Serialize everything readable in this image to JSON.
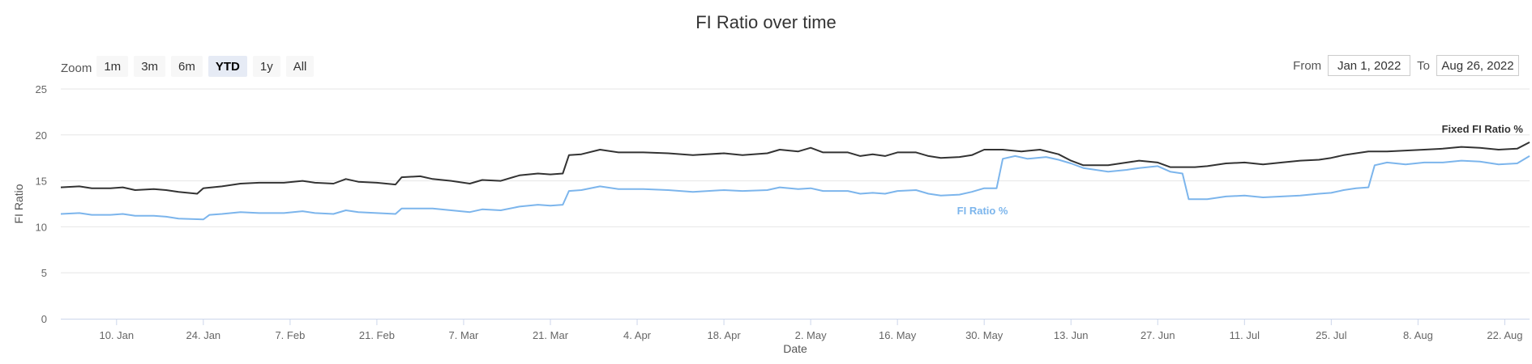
{
  "chart_data": {
    "type": "line",
    "title": "FI Ratio over time",
    "xlabel": "Date",
    "ylabel": "FI Ratio",
    "ylim": [
      0,
      25
    ],
    "yticks": [
      "0",
      "5",
      "10",
      "15",
      "20",
      "25"
    ],
    "xlim": [
      "2022-01-01",
      "2022-08-26"
    ],
    "xticks": [
      {
        "date": "2022-01-10",
        "label": "10. Jan"
      },
      {
        "date": "2022-01-24",
        "label": "24. Jan"
      },
      {
        "date": "2022-02-07",
        "label": "7. Feb"
      },
      {
        "date": "2022-02-21",
        "label": "21. Feb"
      },
      {
        "date": "2022-03-07",
        "label": "7. Mar"
      },
      {
        "date": "2022-03-21",
        "label": "21. Mar"
      },
      {
        "date": "2022-04-04",
        "label": "4. Apr"
      },
      {
        "date": "2022-04-18",
        "label": "18. Apr"
      },
      {
        "date": "2022-05-02",
        "label": "2. May"
      },
      {
        "date": "2022-05-16",
        "label": "16. May"
      },
      {
        "date": "2022-05-30",
        "label": "30. May"
      },
      {
        "date": "2022-06-13",
        "label": "13. Jun"
      },
      {
        "date": "2022-06-27",
        "label": "27. Jun"
      },
      {
        "date": "2022-07-11",
        "label": "11. Jul"
      },
      {
        "date": "2022-07-25",
        "label": "25. Jul"
      },
      {
        "date": "2022-08-08",
        "label": "8. Aug"
      },
      {
        "date": "2022-08-22",
        "label": "22. Aug"
      }
    ],
    "grid": true,
    "legend": "none",
    "series": [
      {
        "name": "Fixed FI Ratio %",
        "color": "#333333",
        "points": [
          [
            "2022-01-01",
            14.3
          ],
          [
            "2022-01-04",
            14.4
          ],
          [
            "2022-01-06",
            14.2
          ],
          [
            "2022-01-09",
            14.2
          ],
          [
            "2022-01-11",
            14.3
          ],
          [
            "2022-01-13",
            14.0
          ],
          [
            "2022-01-16",
            14.1
          ],
          [
            "2022-01-18",
            14.0
          ],
          [
            "2022-01-20",
            13.8
          ],
          [
            "2022-01-23",
            13.6
          ],
          [
            "2022-01-24",
            14.2
          ],
          [
            "2022-01-27",
            14.4
          ],
          [
            "2022-01-30",
            14.7
          ],
          [
            "2022-02-02",
            14.8
          ],
          [
            "2022-02-06",
            14.8
          ],
          [
            "2022-02-09",
            15.0
          ],
          [
            "2022-02-11",
            14.8
          ],
          [
            "2022-02-14",
            14.7
          ],
          [
            "2022-02-16",
            15.2
          ],
          [
            "2022-02-18",
            14.9
          ],
          [
            "2022-02-21",
            14.8
          ],
          [
            "2022-02-24",
            14.6
          ],
          [
            "2022-02-25",
            15.4
          ],
          [
            "2022-02-28",
            15.5
          ],
          [
            "2022-03-02",
            15.2
          ],
          [
            "2022-03-05",
            15.0
          ],
          [
            "2022-03-08",
            14.7
          ],
          [
            "2022-03-10",
            15.1
          ],
          [
            "2022-03-13",
            15.0
          ],
          [
            "2022-03-16",
            15.6
          ],
          [
            "2022-03-19",
            15.8
          ],
          [
            "2022-03-21",
            15.7
          ],
          [
            "2022-03-23",
            15.8
          ],
          [
            "2022-03-24",
            17.8
          ],
          [
            "2022-03-26",
            17.9
          ],
          [
            "2022-03-29",
            18.4
          ],
          [
            "2022-04-01",
            18.1
          ],
          [
            "2022-04-05",
            18.1
          ],
          [
            "2022-04-09",
            18.0
          ],
          [
            "2022-04-13",
            17.8
          ],
          [
            "2022-04-18",
            18.0
          ],
          [
            "2022-04-21",
            17.8
          ],
          [
            "2022-04-25",
            18.0
          ],
          [
            "2022-04-27",
            18.4
          ],
          [
            "2022-04-30",
            18.2
          ],
          [
            "2022-05-02",
            18.6
          ],
          [
            "2022-05-04",
            18.1
          ],
          [
            "2022-05-08",
            18.1
          ],
          [
            "2022-05-10",
            17.7
          ],
          [
            "2022-05-12",
            17.9
          ],
          [
            "2022-05-14",
            17.7
          ],
          [
            "2022-05-16",
            18.1
          ],
          [
            "2022-05-19",
            18.1
          ],
          [
            "2022-05-21",
            17.7
          ],
          [
            "2022-05-23",
            17.5
          ],
          [
            "2022-05-26",
            17.6
          ],
          [
            "2022-05-28",
            17.8
          ],
          [
            "2022-05-30",
            18.4
          ],
          [
            "2022-06-02",
            18.4
          ],
          [
            "2022-06-05",
            18.2
          ],
          [
            "2022-06-08",
            18.4
          ],
          [
            "2022-06-11",
            17.9
          ],
          [
            "2022-06-13",
            17.2
          ],
          [
            "2022-06-15",
            16.7
          ],
          [
            "2022-06-19",
            16.7
          ],
          [
            "2022-06-22",
            17.0
          ],
          [
            "2022-06-24",
            17.2
          ],
          [
            "2022-06-27",
            17.0
          ],
          [
            "2022-06-29",
            16.5
          ],
          [
            "2022-07-03",
            16.5
          ],
          [
            "2022-07-05",
            16.6
          ],
          [
            "2022-07-08",
            16.9
          ],
          [
            "2022-07-11",
            17.0
          ],
          [
            "2022-07-14",
            16.8
          ],
          [
            "2022-07-17",
            17.0
          ],
          [
            "2022-07-20",
            17.2
          ],
          [
            "2022-07-23",
            17.3
          ],
          [
            "2022-07-25",
            17.5
          ],
          [
            "2022-07-27",
            17.8
          ],
          [
            "2022-07-31",
            18.2
          ],
          [
            "2022-08-03",
            18.2
          ],
          [
            "2022-08-06",
            18.3
          ],
          [
            "2022-08-09",
            18.4
          ],
          [
            "2022-08-12",
            18.5
          ],
          [
            "2022-08-15",
            18.7
          ],
          [
            "2022-08-18",
            18.6
          ],
          [
            "2022-08-21",
            18.4
          ],
          [
            "2022-08-24",
            18.5
          ],
          [
            "2022-08-26",
            19.2
          ]
        ]
      },
      {
        "name": "FI Ratio %",
        "color": "#7cb5ec",
        "points": [
          [
            "2022-01-01",
            11.4
          ],
          [
            "2022-01-04",
            11.5
          ],
          [
            "2022-01-06",
            11.3
          ],
          [
            "2022-01-09",
            11.3
          ],
          [
            "2022-01-11",
            11.4
          ],
          [
            "2022-01-13",
            11.2
          ],
          [
            "2022-01-16",
            11.2
          ],
          [
            "2022-01-18",
            11.1
          ],
          [
            "2022-01-20",
            10.9
          ],
          [
            "2022-01-24",
            10.8
          ],
          [
            "2022-01-25",
            11.3
          ],
          [
            "2022-01-27",
            11.4
          ],
          [
            "2022-01-30",
            11.6
          ],
          [
            "2022-02-02",
            11.5
          ],
          [
            "2022-02-06",
            11.5
          ],
          [
            "2022-02-09",
            11.7
          ],
          [
            "2022-02-11",
            11.5
          ],
          [
            "2022-02-14",
            11.4
          ],
          [
            "2022-02-16",
            11.8
          ],
          [
            "2022-02-18",
            11.6
          ],
          [
            "2022-02-21",
            11.5
          ],
          [
            "2022-02-24",
            11.4
          ],
          [
            "2022-02-25",
            12.0
          ],
          [
            "2022-02-28",
            12.0
          ],
          [
            "2022-03-02",
            12.0
          ],
          [
            "2022-03-05",
            11.8
          ],
          [
            "2022-03-08",
            11.6
          ],
          [
            "2022-03-10",
            11.9
          ],
          [
            "2022-03-13",
            11.8
          ],
          [
            "2022-03-16",
            12.2
          ],
          [
            "2022-03-19",
            12.4
          ],
          [
            "2022-03-21",
            12.3
          ],
          [
            "2022-03-23",
            12.4
          ],
          [
            "2022-03-24",
            13.9
          ],
          [
            "2022-03-26",
            14.0
          ],
          [
            "2022-03-29",
            14.4
          ],
          [
            "2022-04-01",
            14.1
          ],
          [
            "2022-04-05",
            14.1
          ],
          [
            "2022-04-09",
            14.0
          ],
          [
            "2022-04-13",
            13.8
          ],
          [
            "2022-04-18",
            14.0
          ],
          [
            "2022-04-21",
            13.9
          ],
          [
            "2022-04-25",
            14.0
          ],
          [
            "2022-04-27",
            14.3
          ],
          [
            "2022-04-30",
            14.1
          ],
          [
            "2022-05-02",
            14.2
          ],
          [
            "2022-05-04",
            13.9
          ],
          [
            "2022-05-08",
            13.9
          ],
          [
            "2022-05-10",
            13.6
          ],
          [
            "2022-05-12",
            13.7
          ],
          [
            "2022-05-14",
            13.6
          ],
          [
            "2022-05-16",
            13.9
          ],
          [
            "2022-05-19",
            14.0
          ],
          [
            "2022-05-21",
            13.6
          ],
          [
            "2022-05-23",
            13.4
          ],
          [
            "2022-05-26",
            13.5
          ],
          [
            "2022-05-28",
            13.8
          ],
          [
            "2022-05-30",
            14.2
          ],
          [
            "2022-06-01",
            14.2
          ],
          [
            "2022-06-02",
            17.4
          ],
          [
            "2022-06-04",
            17.7
          ],
          [
            "2022-06-06",
            17.4
          ],
          [
            "2022-06-09",
            17.6
          ],
          [
            "2022-06-11",
            17.3
          ],
          [
            "2022-06-13",
            16.9
          ],
          [
            "2022-06-15",
            16.4
          ],
          [
            "2022-06-19",
            16.0
          ],
          [
            "2022-06-22",
            16.2
          ],
          [
            "2022-06-24",
            16.4
          ],
          [
            "2022-06-27",
            16.6
          ],
          [
            "2022-06-29",
            16.0
          ],
          [
            "2022-07-01",
            15.8
          ],
          [
            "2022-07-02",
            13.0
          ],
          [
            "2022-07-05",
            13.0
          ],
          [
            "2022-07-08",
            13.3
          ],
          [
            "2022-07-11",
            13.4
          ],
          [
            "2022-07-14",
            13.2
          ],
          [
            "2022-07-17",
            13.3
          ],
          [
            "2022-07-20",
            13.4
          ],
          [
            "2022-07-23",
            13.6
          ],
          [
            "2022-07-25",
            13.7
          ],
          [
            "2022-07-27",
            14.0
          ],
          [
            "2022-07-29",
            14.2
          ],
          [
            "2022-07-31",
            14.3
          ],
          [
            "2022-08-01",
            16.7
          ],
          [
            "2022-08-03",
            17.0
          ],
          [
            "2022-08-06",
            16.8
          ],
          [
            "2022-08-09",
            17.0
          ],
          [
            "2022-08-12",
            17.0
          ],
          [
            "2022-08-15",
            17.2
          ],
          [
            "2022-08-18",
            17.1
          ],
          [
            "2022-08-21",
            16.8
          ],
          [
            "2022-08-24",
            16.9
          ],
          [
            "2022-08-26",
            17.7
          ]
        ]
      }
    ]
  },
  "zoom": {
    "label": "Zoom",
    "buttons": [
      "1m",
      "3m",
      "6m",
      "YTD",
      "1y",
      "All"
    ],
    "selected": "YTD"
  },
  "range": {
    "from_label": "From",
    "from_value": "Jan 1, 2022",
    "to_label": "To",
    "to_value": "Aug 26, 2022"
  }
}
